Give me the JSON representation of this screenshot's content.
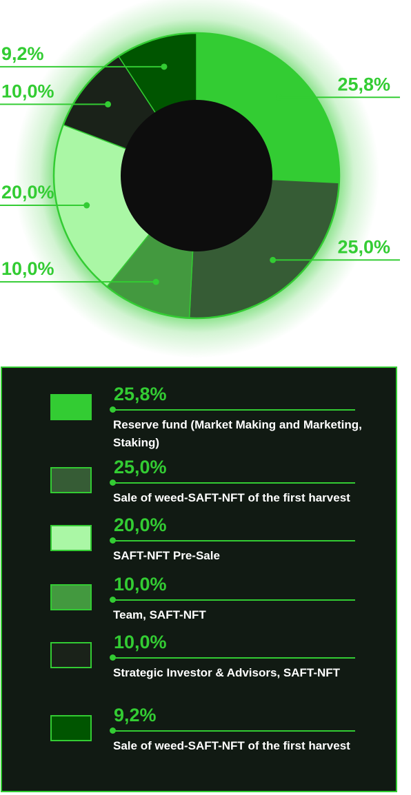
{
  "chart_data": {
    "type": "pie",
    "variant": "donut",
    "slices": [
      {
        "label": "Reserve fund (Market Making and Marketing, Staking)",
        "value": 25.8,
        "display": "25,8%",
        "color": "#33cc33"
      },
      {
        "label": "Sale of weed-SAFT-NFT of the first harvest",
        "value": 25.0,
        "display": "25,0%",
        "color": "#365c35"
      },
      {
        "label": "Team, SAFT-NFT",
        "value": 10.0,
        "display": "10,0%",
        "color": "#43993f"
      },
      {
        "label": "SAFT-NFT Pre-Sale",
        "value": 20.0,
        "display": "20,0%",
        "color": "#aaf7a5"
      },
      {
        "label": "Strategic Investor & Advisors, SAFT-NFT",
        "value": 10.0,
        "display": "10,0%",
        "color": "#1a2219"
      },
      {
        "label": "Sale of weed-SAFT-NFT of the first harvest",
        "value": 9.2,
        "display": "9,2%",
        "color": "#005500"
      }
    ],
    "accent_color": "#33cc33",
    "hole_color": "#0d0d0d"
  },
  "legend": {
    "items": [
      {
        "pct": "25,8%",
        "desc": "Reserve fund (Market Making and Marketing, Staking)",
        "color": "#33cc33"
      },
      {
        "pct": "25,0%",
        "desc": "Sale of weed-SAFT-NFT of the first harvest",
        "color": "#365c35"
      },
      {
        "pct": "20,0%",
        "desc": "SAFT-NFT Pre-Sale",
        "color": "#aaf7a5"
      },
      {
        "pct": "10,0%",
        "desc": "Team, SAFT-NFT",
        "color": "#43993f"
      },
      {
        "pct": "10,0%",
        "desc": "Strategic Investor & Advisors, SAFT-NFT",
        "color": "#1a2219"
      },
      {
        "pct": "9,2%",
        "desc": "Sale of weed-SAFT-NFT of the first harvest",
        "color": "#005500"
      }
    ]
  }
}
